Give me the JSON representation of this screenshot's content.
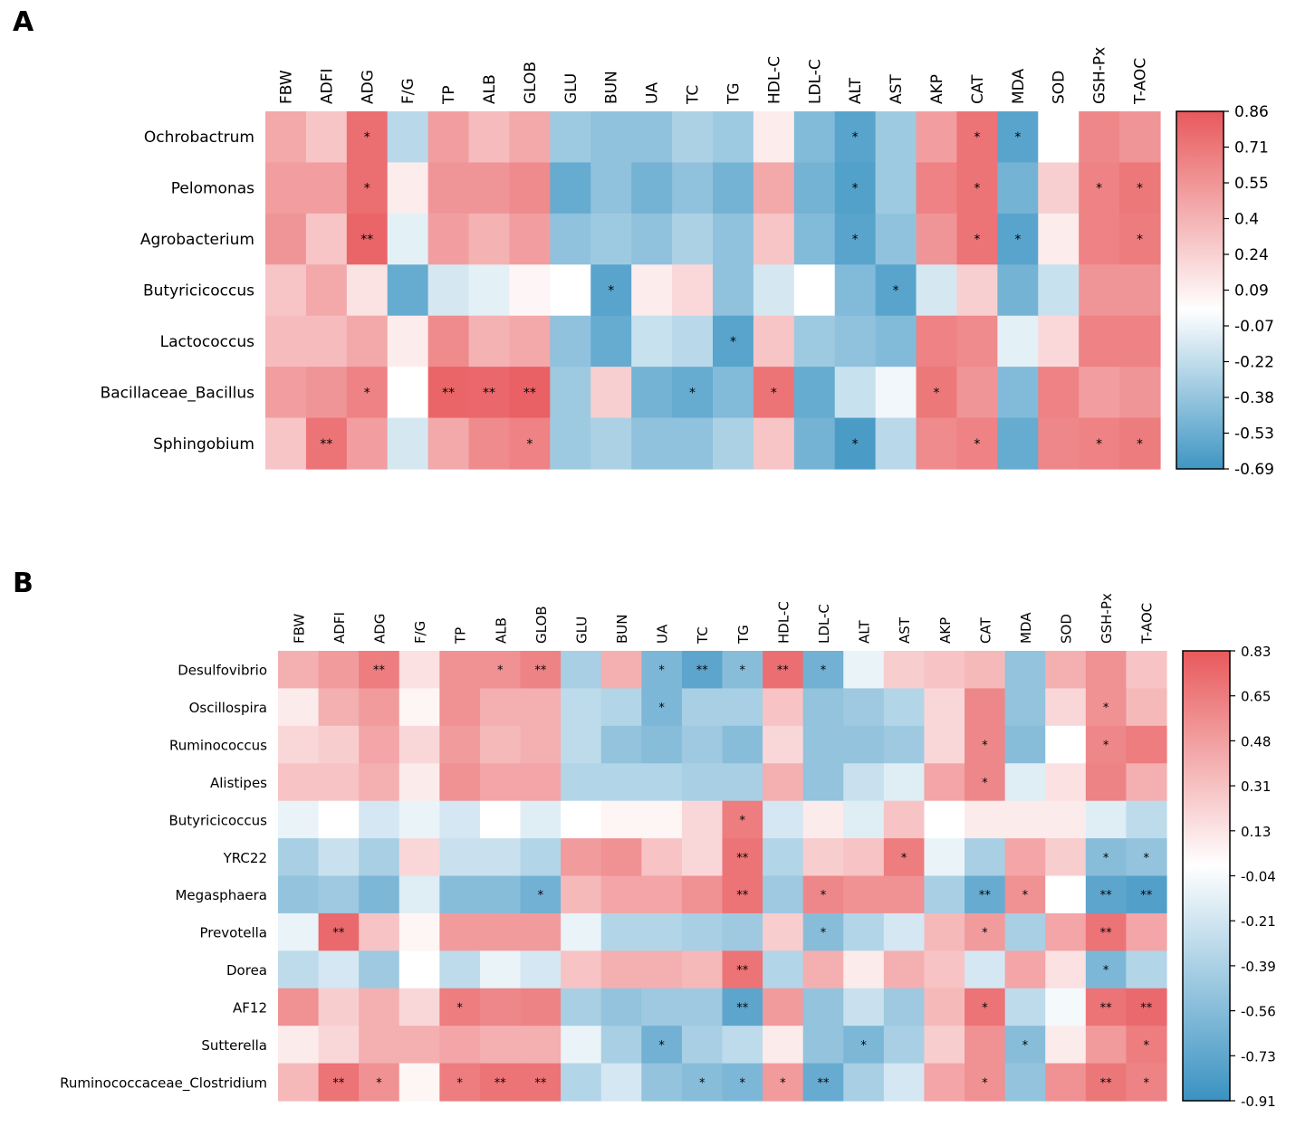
{
  "chart_data": [
    {
      "type": "heatmap",
      "panel_label": "A",
      "columns": [
        "FBW",
        "ADFI",
        "ADG",
        "F/G",
        "TP",
        "ALB",
        "GLOB",
        "GLU",
        "BUN",
        "UA",
        "TC",
        "TG",
        "HDL-C",
        "LDL-C",
        "ALT",
        "AST",
        "AKP",
        "CAT",
        "MDA",
        "SOD",
        "GSH-Px",
        "T-AOC"
      ],
      "rows": [
        "Ochrobactrum",
        "Pelomonas",
        "Agrobacterium",
        "Butyricicoccus",
        "Lactococcus",
        "Bacillaceae_Bacillus",
        "Sphingobium"
      ],
      "values": [
        [
          0.45,
          0.3,
          0.75,
          -0.25,
          0.5,
          0.35,
          0.45,
          -0.35,
          -0.4,
          -0.4,
          -0.3,
          -0.35,
          0.1,
          -0.45,
          -0.6,
          -0.35,
          0.5,
          0.72,
          -0.6,
          0.0,
          0.62,
          0.55
        ],
        [
          0.5,
          0.5,
          0.75,
          0.1,
          0.55,
          0.55,
          0.6,
          -0.55,
          -0.4,
          -0.5,
          -0.4,
          -0.5,
          0.45,
          -0.5,
          -0.62,
          -0.35,
          0.65,
          0.72,
          -0.5,
          0.25,
          0.65,
          0.7
        ],
        [
          0.55,
          0.3,
          0.8,
          -0.1,
          0.5,
          0.4,
          0.5,
          -0.4,
          -0.35,
          -0.4,
          -0.3,
          -0.4,
          0.3,
          -0.45,
          -0.6,
          -0.4,
          0.55,
          0.72,
          -0.6,
          0.1,
          0.65,
          0.68
        ],
        [
          0.3,
          0.45,
          0.15,
          -0.55,
          -0.15,
          -0.1,
          0.05,
          0.0,
          -0.6,
          0.1,
          0.2,
          -0.4,
          -0.15,
          0.0,
          -0.45,
          -0.6,
          -0.15,
          0.25,
          -0.5,
          -0.2,
          0.55,
          0.55
        ],
        [
          0.35,
          0.35,
          0.45,
          0.1,
          0.6,
          0.4,
          0.45,
          -0.4,
          -0.55,
          -0.2,
          -0.25,
          -0.6,
          0.3,
          -0.35,
          -0.4,
          -0.45,
          0.65,
          0.6,
          -0.1,
          0.2,
          0.65,
          0.65
        ],
        [
          0.5,
          0.55,
          0.65,
          0.0,
          0.8,
          0.78,
          0.82,
          -0.35,
          0.25,
          -0.5,
          -0.55,
          -0.45,
          0.72,
          -0.55,
          -0.2,
          -0.05,
          0.7,
          0.55,
          -0.45,
          0.65,
          0.5,
          0.55
        ],
        [
          0.3,
          0.72,
          0.5,
          -0.15,
          0.45,
          0.6,
          0.65,
          -0.35,
          -0.3,
          -0.4,
          -0.4,
          -0.3,
          0.3,
          -0.5,
          -0.65,
          -0.25,
          0.6,
          0.65,
          -0.55,
          0.62,
          0.65,
          0.68
        ]
      ],
      "annotations": [
        [
          "",
          "",
          "*",
          "",
          "",
          "",
          "",
          "",
          "",
          "",
          "",
          "",
          "",
          "",
          "*",
          "",
          "",
          "*",
          "*",
          "",
          "",
          ""
        ],
        [
          "",
          "",
          "*",
          "",
          "",
          "",
          "",
          "",
          "",
          "",
          "",
          "",
          "",
          "",
          "*",
          "",
          "",
          "*",
          "",
          "",
          "*",
          "*"
        ],
        [
          "",
          "",
          "**",
          "",
          "",
          "",
          "",
          "",
          "",
          "",
          "",
          "",
          "",
          "",
          "*",
          "",
          "",
          "*",
          "*",
          "",
          "",
          "*"
        ],
        [
          "",
          "",
          "",
          "",
          "",
          "",
          "",
          "",
          "*",
          "",
          "",
          "",
          "",
          "",
          "",
          "*",
          "",
          "",
          "",
          "",
          "",
          ""
        ],
        [
          "",
          "",
          "",
          "",
          "",
          "",
          "",
          "",
          "",
          "",
          "",
          "*",
          "",
          "",
          "",
          "",
          "",
          "",
          "",
          "",
          "",
          ""
        ],
        [
          "",
          "",
          "*",
          "",
          "**",
          "**",
          "**",
          "",
          "",
          "",
          "*",
          "",
          "*",
          "",
          "",
          "",
          "*",
          "",
          "",
          "",
          "",
          ""
        ],
        [
          "",
          "**",
          "",
          "",
          "",
          "",
          "*",
          "",
          "",
          "",
          "",
          "",
          "",
          "",
          "*",
          "",
          "",
          "*",
          "",
          "",
          "*",
          "*"
        ]
      ],
      "colorbar": {
        "min": -0.69,
        "max": 0.86,
        "ticks": [
          "0.86",
          "0.71",
          "0.55",
          "0.4",
          "0.24",
          "0.09",
          "-0.07",
          "-0.22",
          "-0.38",
          "-0.53",
          "-0.69"
        ]
      },
      "colors": {
        "negative": "#3f96c4",
        "neutral": "#ffffff",
        "positive": "#e8595c"
      }
    },
    {
      "type": "heatmap",
      "panel_label": "B",
      "columns": [
        "FBW",
        "ADFI",
        "ADG",
        "F/G",
        "TP",
        "ALB",
        "GLOB",
        "GLU",
        "BUN",
        "UA",
        "TC",
        "TG",
        "HDL-C",
        "LDL-C",
        "ALT",
        "AST",
        "AKP",
        "CAT",
        "MDA",
        "SOD",
        "GSH-Px",
        "T-AOC"
      ],
      "rows": [
        "Desulfovibrio",
        "Oscillospira",
        "Ruminococcus",
        "Alistipes",
        "Butyricicoccus",
        "YRC22",
        "Megasphaera",
        "Prevotella",
        "Dorea",
        "AF12",
        "Sutterella",
        "Ruminococcaceae_Clostridium"
      ],
      "values": [
        [
          0.4,
          0.5,
          0.65,
          0.15,
          0.55,
          0.55,
          0.62,
          -0.4,
          0.4,
          -0.6,
          -0.75,
          -0.55,
          0.72,
          -0.65,
          -0.1,
          0.25,
          0.3,
          0.35,
          -0.5,
          0.4,
          0.55,
          0.3
        ],
        [
          0.1,
          0.4,
          0.5,
          0.05,
          0.55,
          0.4,
          0.4,
          -0.3,
          -0.35,
          -0.6,
          -0.4,
          -0.4,
          0.3,
          -0.5,
          -0.45,
          -0.35,
          0.2,
          0.6,
          -0.5,
          0.2,
          0.55,
          0.35
        ],
        [
          0.2,
          0.25,
          0.45,
          0.2,
          0.5,
          0.35,
          0.4,
          -0.3,
          -0.5,
          -0.55,
          -0.45,
          -0.55,
          0.2,
          -0.5,
          -0.5,
          -0.45,
          0.2,
          0.6,
          -0.55,
          0.0,
          0.6,
          0.65
        ],
        [
          0.3,
          0.3,
          0.4,
          0.1,
          0.55,
          0.45,
          0.45,
          -0.35,
          -0.35,
          -0.35,
          -0.4,
          -0.4,
          0.4,
          -0.5,
          -0.25,
          -0.15,
          0.45,
          0.6,
          -0.15,
          0.15,
          0.62,
          0.4
        ],
        [
          -0.1,
          0.0,
          -0.2,
          -0.1,
          -0.2,
          0.0,
          -0.15,
          0.0,
          0.05,
          0.05,
          0.2,
          0.65,
          -0.2,
          0.1,
          -0.15,
          0.3,
          0.0,
          0.1,
          0.1,
          0.1,
          -0.15,
          -0.3
        ],
        [
          -0.4,
          -0.25,
          -0.4,
          0.2,
          -0.25,
          -0.25,
          -0.35,
          0.5,
          0.55,
          0.3,
          0.2,
          0.7,
          -0.35,
          0.25,
          0.3,
          0.65,
          -0.1,
          -0.4,
          0.45,
          0.25,
          -0.55,
          -0.5
        ],
        [
          -0.5,
          -0.45,
          -0.6,
          -0.15,
          -0.55,
          -0.55,
          -0.65,
          0.35,
          0.45,
          0.45,
          0.55,
          0.7,
          -0.45,
          0.6,
          0.55,
          0.55,
          -0.4,
          -0.7,
          0.55,
          0.0,
          -0.75,
          -0.8
        ],
        [
          -0.1,
          0.75,
          0.3,
          0.05,
          0.5,
          0.5,
          0.5,
          -0.1,
          -0.35,
          -0.35,
          -0.4,
          -0.45,
          0.25,
          -0.55,
          -0.35,
          -0.2,
          0.35,
          0.5,
          -0.4,
          0.45,
          0.7,
          0.45
        ],
        [
          -0.3,
          -0.2,
          -0.45,
          0.0,
          -0.3,
          -0.1,
          -0.2,
          0.3,
          0.4,
          0.4,
          0.35,
          0.7,
          -0.35,
          0.4,
          0.1,
          0.4,
          0.3,
          -0.2,
          0.45,
          0.15,
          -0.6,
          -0.35
        ],
        [
          0.55,
          0.25,
          0.4,
          0.2,
          0.65,
          0.6,
          0.62,
          -0.4,
          -0.5,
          -0.45,
          -0.45,
          -0.75,
          0.5,
          -0.5,
          -0.25,
          -0.45,
          0.35,
          0.7,
          -0.3,
          -0.05,
          0.7,
          0.75
        ],
        [
          0.1,
          0.2,
          0.4,
          0.4,
          0.45,
          0.4,
          0.4,
          -0.1,
          -0.4,
          -0.65,
          -0.4,
          -0.3,
          0.1,
          -0.5,
          -0.6,
          -0.4,
          0.25,
          0.55,
          -0.55,
          0.1,
          0.5,
          0.65
        ],
        [
          0.35,
          0.7,
          0.55,
          0.05,
          0.65,
          0.7,
          0.7,
          -0.35,
          -0.2,
          -0.5,
          -0.55,
          -0.6,
          0.5,
          -0.7,
          -0.4,
          -0.2,
          0.45,
          0.55,
          -0.5,
          0.55,
          0.68,
          0.62
        ]
      ],
      "annotations": [
        [
          "",
          "",
          "**",
          "",
          "",
          "*",
          "**",
          "",
          "",
          "*",
          "**",
          "*",
          "**",
          "*",
          "",
          "",
          "",
          "",
          "",
          "",
          "",
          ""
        ],
        [
          "",
          "",
          "",
          "",
          "",
          "",
          "",
          "",
          "",
          "*",
          "",
          "",
          "",
          "",
          "",
          "",
          "",
          "",
          "",
          "",
          "*",
          ""
        ],
        [
          "",
          "",
          "",
          "",
          "",
          "",
          "",
          "",
          "",
          "",
          "",
          "",
          "",
          "",
          "",
          "",
          "",
          "*",
          "",
          "",
          "*",
          ""
        ],
        [
          "",
          "",
          "",
          "",
          "",
          "",
          "",
          "",
          "",
          "",
          "",
          "",
          "",
          "",
          "",
          "",
          "",
          "*",
          "",
          "",
          "",
          ""
        ],
        [
          "",
          "",
          "",
          "",
          "",
          "",
          "",
          "",
          "",
          "",
          "",
          "*",
          "",
          "",
          "",
          "",
          "",
          "",
          "",
          "",
          "",
          ""
        ],
        [
          "",
          "",
          "",
          "",
          "",
          "",
          "",
          "",
          "",
          "",
          "",
          "**",
          "",
          "",
          "",
          "*",
          "",
          "",
          "",
          "",
          "*",
          "*"
        ],
        [
          "",
          "",
          "",
          "",
          "",
          "",
          "*",
          "",
          "",
          "",
          "",
          "**",
          "",
          "*",
          "",
          "",
          "",
          "**",
          "*",
          "",
          "**",
          "**"
        ],
        [
          "",
          "**",
          "",
          "",
          "",
          "",
          "",
          "",
          "",
          "",
          "",
          "",
          "",
          "*",
          "",
          "",
          "",
          "*",
          "",
          "",
          "**",
          ""
        ],
        [
          "",
          "",
          "",
          "",
          "",
          "",
          "",
          "",
          "",
          "",
          "",
          "**",
          "",
          "",
          "",
          "",
          "",
          "",
          "",
          "",
          "*",
          ""
        ],
        [
          "",
          "",
          "",
          "",
          "*",
          "",
          "",
          "",
          "",
          "",
          "",
          "**",
          "",
          "",
          "",
          "",
          "",
          "*",
          "",
          "",
          "**",
          "**"
        ],
        [
          "",
          "",
          "",
          "",
          "",
          "",
          "",
          "",
          "",
          "*",
          "",
          "",
          "",
          "",
          "*",
          "",
          "",
          "",
          "*",
          "",
          "",
          "*"
        ],
        [
          "",
          "**",
          "*",
          "",
          "*",
          "**",
          "**",
          "",
          "",
          "",
          "*",
          "*",
          "*",
          "**",
          "",
          "",
          "",
          "*",
          "",
          "",
          "**",
          "*"
        ]
      ],
      "colorbar": {
        "min": -0.91,
        "max": 0.83,
        "ticks": [
          "0.83",
          "0.65",
          "0.48",
          "0.31",
          "0.13",
          "-0.04",
          "-0.21",
          "-0.39",
          "-0.56",
          "-0.73",
          "-0.91"
        ]
      },
      "colors": {
        "negative": "#3a92c2",
        "neutral": "#ffffff",
        "positive": "#e8595c"
      }
    }
  ]
}
